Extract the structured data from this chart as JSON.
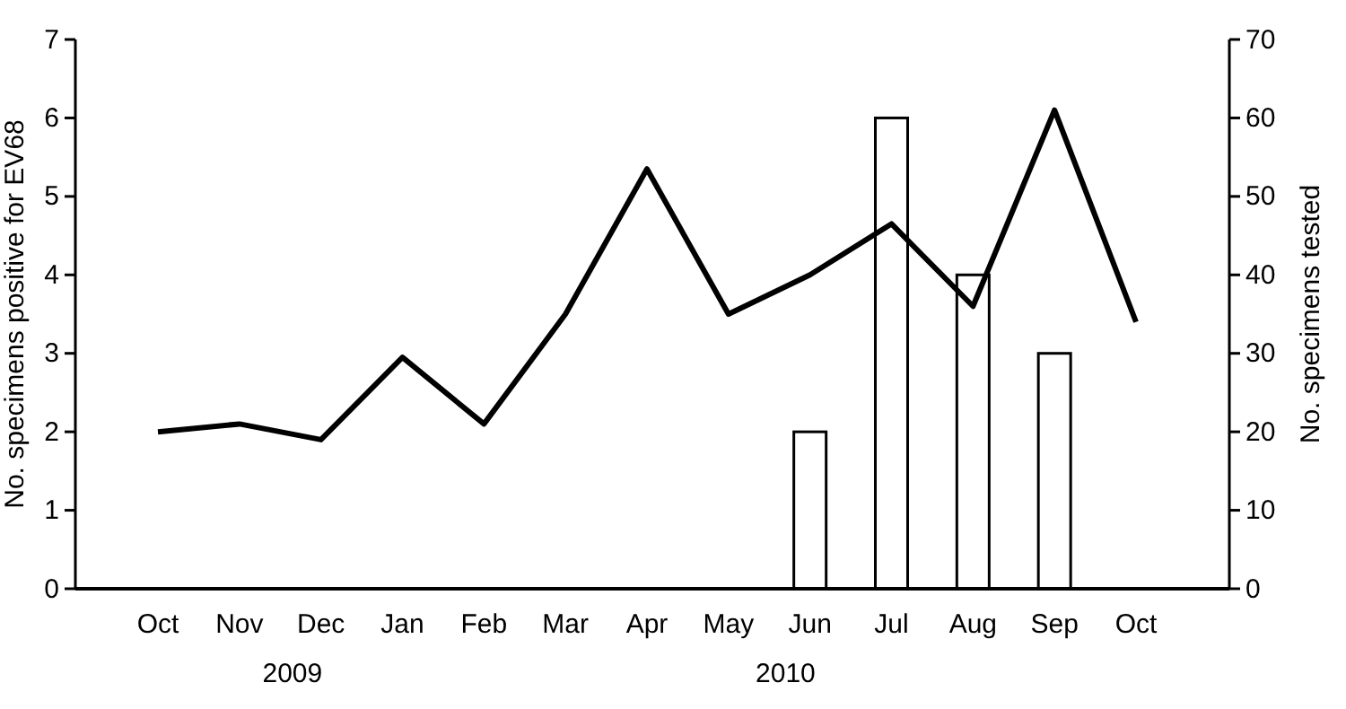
{
  "chart_data": {
    "type": "bar",
    "categories": [
      "Oct",
      "Nov",
      "Dec",
      "Jan",
      "Feb",
      "Mar",
      "Apr",
      "May",
      "Jun",
      "Jul",
      "Aug",
      "Sep",
      "Oct"
    ],
    "series": [
      {
        "color": "#ffffff",
        "values": [
          0,
          0,
          0,
          0,
          0,
          0,
          0,
          0,
          2,
          6,
          4,
          3,
          0
        ]
      },
      {
        "type": "line",
        "axis": "y2",
        "color": "#000000",
        "values": [
          20,
          21,
          19,
          29.5,
          21,
          35,
          53.5,
          35,
          40,
          46.5,
          36,
          61,
          34
        ]
      }
    ],
    "ylabel": "No. specimens positive for EV68",
    "y2label": "No. specimens tested",
    "ylim": [
      0,
      7
    ],
    "yticks": [
      0,
      1,
      2,
      3,
      4,
      5,
      6,
      7
    ],
    "y2lim": [
      0,
      70
    ],
    "y2ticks": [
      0,
      10,
      20,
      30,
      40,
      50,
      60,
      70
    ],
    "annotations": [
      "2009",
      "2010"
    ],
    "grid": false
  }
}
